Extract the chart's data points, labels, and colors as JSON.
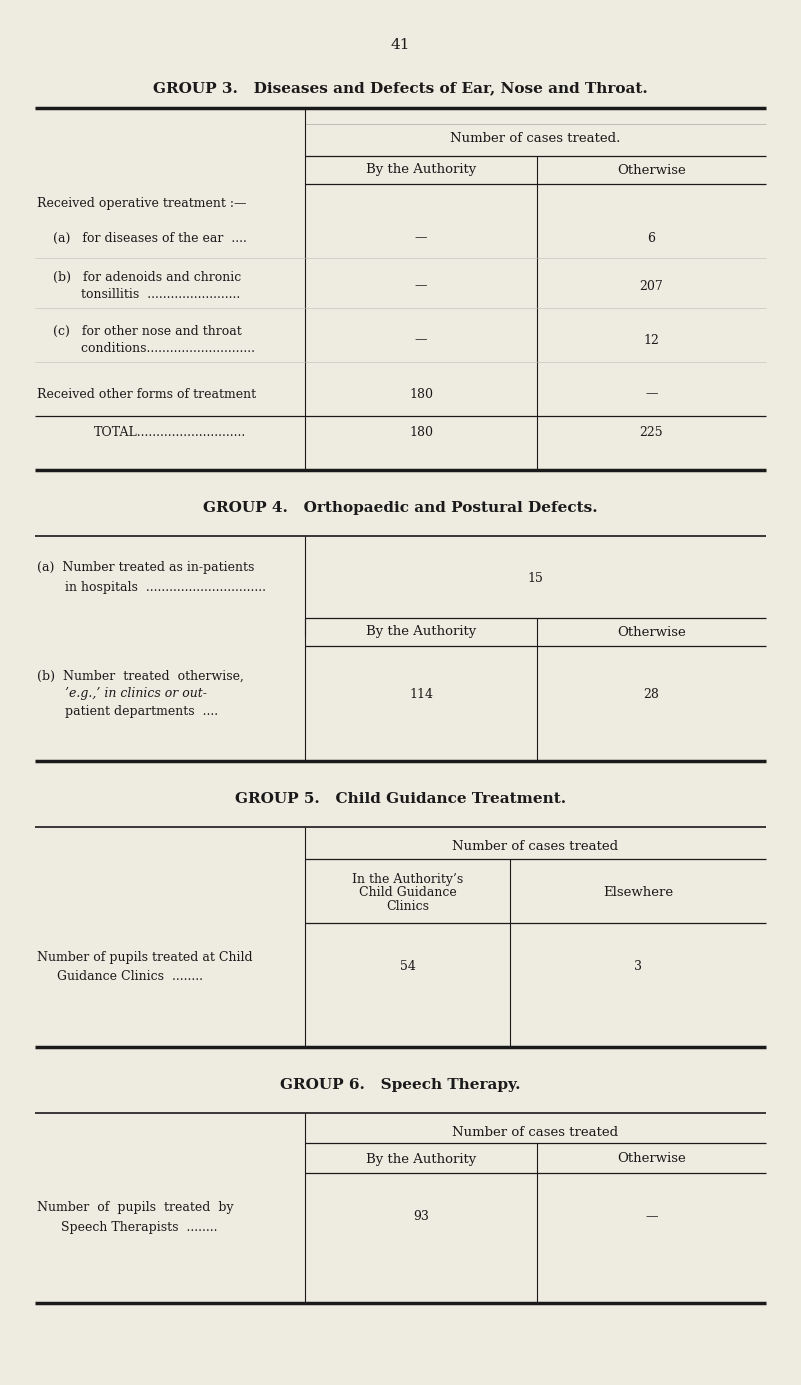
{
  "page_number": "41",
  "bg_color": "#eeebe0",
  "text_color": "#1a1a1a",
  "group3": {
    "title": "GROUP 3.   Diseases and Defects of Ear, Nose and Throat.",
    "header1": "Number of cases treated.",
    "col1": "By the Authority",
    "col2": "Otherwise"
  },
  "group4": {
    "title": "GROUP 4.   Orthopaedic and Postural Defects.",
    "col1": "By the Authority",
    "col2": "Otherwise"
  },
  "group5": {
    "title": "GROUP 5.   Child Guidance Treatment.",
    "header": "Number of cases treated",
    "col1a": "In the Authority’s",
    "col1b": "Child Guidance",
    "col1c": "Clinics",
    "col2": "Elsewhere"
  },
  "group6": {
    "title": "GROUP 6.   Speech Therapy.",
    "header": "Number of cases treated",
    "col1": "By the Authority",
    "col2": "Otherwise"
  }
}
